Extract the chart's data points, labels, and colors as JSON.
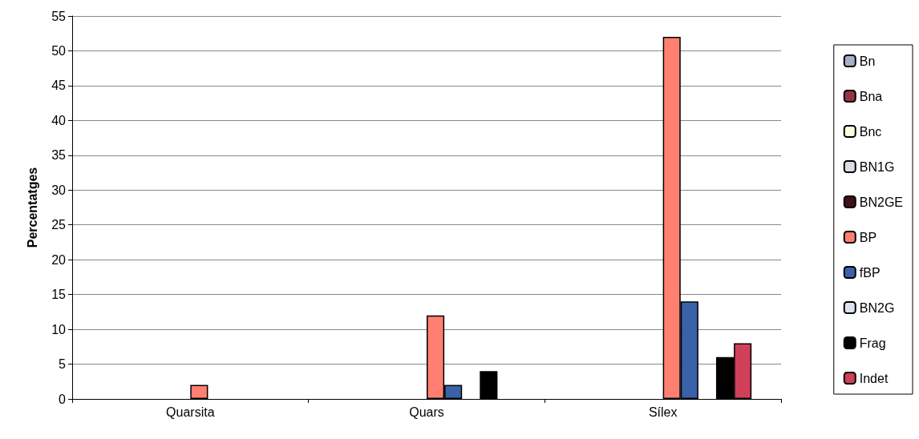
{
  "chart_data": {
    "type": "bar",
    "ylabel": "Percentatges",
    "categories": [
      "Quarsita",
      "Quars",
      "Sílex"
    ],
    "series": [
      {
        "name": "Bn",
        "color": "#a8b0c8",
        "values": [
          null,
          null,
          null
        ]
      },
      {
        "name": "Bna",
        "color": "#993344",
        "values": [
          null,
          null,
          null
        ]
      },
      {
        "name": "Bnc",
        "color": "#ffffe0",
        "values": [
          null,
          null,
          null
        ]
      },
      {
        "name": "BN1G",
        "color": "#d8dce4",
        "values": [
          null,
          null,
          null
        ]
      },
      {
        "name": "BN2GE",
        "color": "#401018",
        "values": [
          null,
          null,
          null
        ]
      },
      {
        "name": "BP",
        "color": "#ff8070",
        "values": [
          2,
          12,
          52
        ]
      },
      {
        "name": "fBP",
        "color": "#3a62a8",
        "values": [
          null,
          2,
          14
        ]
      },
      {
        "name": "BN2G",
        "color": "#dde2f0",
        "values": [
          null,
          null,
          null
        ]
      },
      {
        "name": "Frag",
        "color": "#000000",
        "values": [
          null,
          4,
          6
        ]
      },
      {
        "name": "Indet",
        "color": "#d04058",
        "values": [
          null,
          null,
          8
        ]
      }
    ],
    "ylim": [
      0,
      55
    ],
    "yticks": [
      0,
      5,
      10,
      15,
      20,
      25,
      30,
      35,
      40,
      45,
      50,
      55
    ],
    "grid": "y",
    "legend": "right"
  }
}
